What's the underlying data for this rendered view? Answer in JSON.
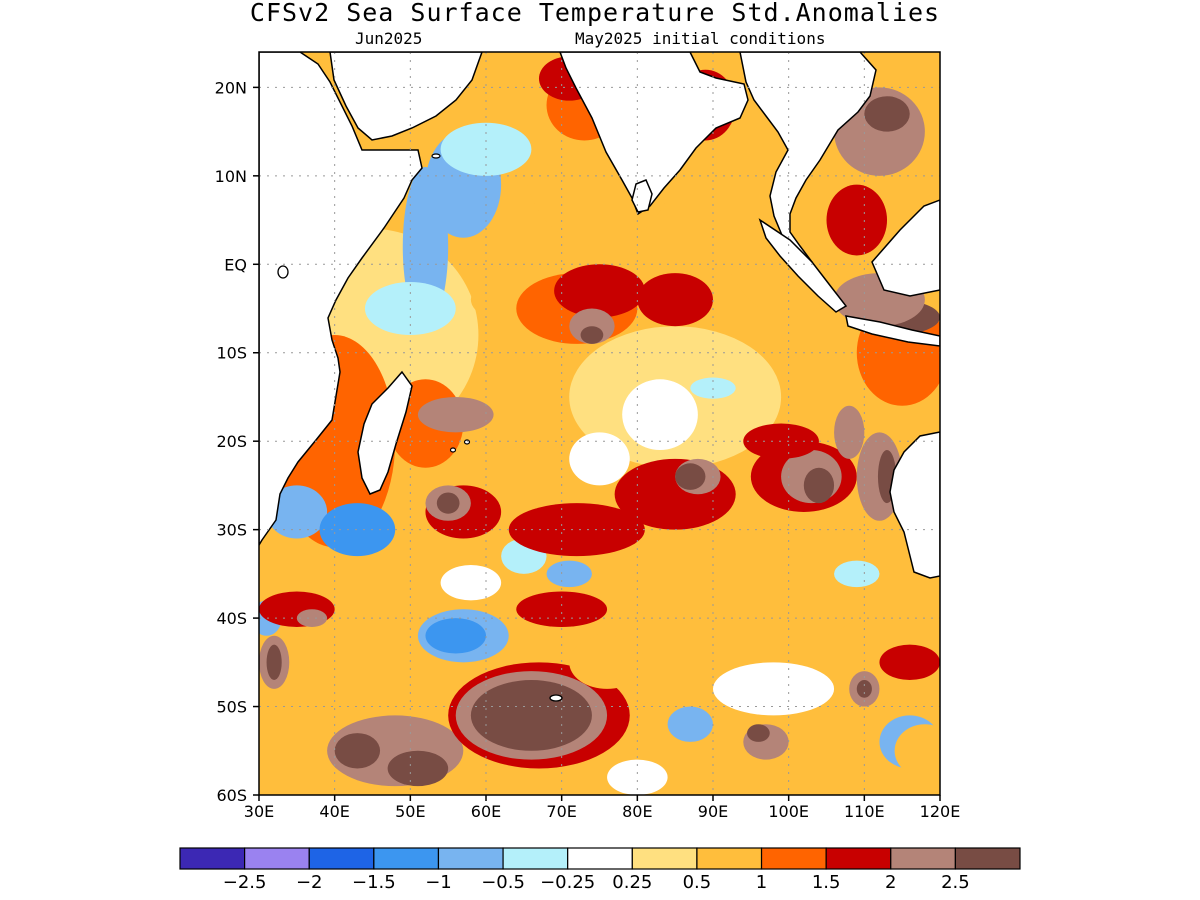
{
  "title": "CFSv2 Sea Surface Temperature Std.Anomalies",
  "subtitle_left": "Jun2025",
  "subtitle_right": "May2025 initial conditions",
  "lat_labels": [
    "20N",
    "10N",
    "EQ",
    "10S",
    "20S",
    "30S",
    "40S",
    "50S",
    "60S"
  ],
  "lat_values": [
    20,
    10,
    0,
    -10,
    -20,
    -30,
    -40,
    -50,
    -60
  ],
  "lon_labels": [
    "30E",
    "40E",
    "50E",
    "60E",
    "70E",
    "80E",
    "90E",
    "100E",
    "110E",
    "120E"
  ],
  "lon_values": [
    30,
    40,
    50,
    60,
    70,
    80,
    90,
    100,
    110,
    120
  ],
  "lat_range": [
    -60,
    24
  ],
  "lon_range": [
    30,
    120
  ],
  "colorbar": {
    "colors": [
      "#3c28b4",
      "#9a82f0",
      "#1e64e6",
      "#3c96f0",
      "#78b4f0",
      "#b4f0fa",
      "#ffffff",
      "#ffe080",
      "#ffbe3c",
      "#ff6400",
      "#c80000",
      "#b48478",
      "#784c44"
    ],
    "labels": [
      "−2.5",
      "−2",
      "−1.5",
      "−1",
      "−0.5",
      "−0.25",
      "0.25",
      "0.5",
      "1",
      "1.5",
      "2",
      "2.5"
    ]
  },
  "anomaly_patches": [
    {
      "lon": 35,
      "lat": -28,
      "level": -1,
      "r": [
        4,
        3
      ]
    },
    {
      "lon": 43,
      "lat": -30,
      "level": -1.5,
      "r": [
        5,
        3
      ]
    },
    {
      "lon": 31,
      "lat": -40,
      "level": -1,
      "r": [
        2,
        2
      ]
    },
    {
      "lon": 52,
      "lat": 2,
      "level": -1,
      "r": [
        3,
        9
      ]
    },
    {
      "lon": 57,
      "lat": 9,
      "level": -1,
      "r": [
        5,
        6
      ]
    },
    {
      "lon": 60,
      "lat": 13,
      "level": -0.5,
      "r": [
        6,
        3
      ]
    },
    {
      "lon": 50,
      "lat": -5,
      "level": -0.5,
      "r": [
        6,
        3
      ]
    },
    {
      "lon": 57,
      "lat": -42,
      "level": -1,
      "r": [
        6,
        3
      ]
    },
    {
      "lon": 56,
      "lat": -42,
      "level": -1.5,
      "r": [
        4,
        2
      ]
    },
    {
      "lon": 71,
      "lat": -35,
      "level": -1,
      "r": [
        3,
        1.5
      ]
    },
    {
      "lon": 65,
      "lat": -33,
      "level": -0.5,
      "r": [
        3,
        2
      ]
    },
    {
      "lon": 90,
      "lat": -14,
      "level": -0.5,
      "r": [
        3,
        1.2
      ]
    },
    {
      "lon": 87,
      "lat": -52,
      "level": -1,
      "r": [
        3,
        2
      ]
    },
    {
      "lon": 116,
      "lat": -54,
      "level": -1,
      "r": [
        4,
        3
      ]
    },
    {
      "lon": 119,
      "lat": -55,
      "level": -2,
      "r": [
        1.5,
        1.2
      ]
    },
    {
      "lon": 109,
      "lat": -35,
      "level": -0.5,
      "r": [
        3,
        1.5
      ]
    },
    {
      "lon": 75,
      "lat": -22,
      "level": -0.25,
      "r": [
        4,
        3
      ]
    },
    {
      "lon": 83,
      "lat": -17,
      "level": -0.25,
      "r": [
        5,
        4
      ]
    },
    {
      "lon": 58,
      "lat": -36,
      "level": -0.25,
      "r": [
        4,
        2
      ]
    },
    {
      "lon": 98,
      "lat": -48,
      "level": -0.25,
      "r": [
        8,
        3
      ]
    },
    {
      "lon": 66,
      "lat": -4,
      "level": 0.5,
      "r": [
        8,
        3
      ]
    },
    {
      "lon": 72,
      "lat": -5,
      "level": 1,
      "r": [
        8,
        4
      ]
    },
    {
      "lon": 75,
      "lat": -3,
      "level": 1.5,
      "r": [
        6,
        3
      ]
    },
    {
      "lon": 74,
      "lat": -7,
      "level": 2,
      "r": [
        3,
        2
      ]
    },
    {
      "lon": 74,
      "lat": -8,
      "level": 2.5,
      "r": [
        1.5,
        1
      ]
    },
    {
      "lon": 85,
      "lat": -4,
      "level": 1.5,
      "r": [
        5,
        3
      ]
    },
    {
      "lon": 73,
      "lat": 18,
      "level": 1,
      "r": [
        5,
        4
      ]
    },
    {
      "lon": 71,
      "lat": 21,
      "level": 1.5,
      "r": [
        4,
        2.5
      ]
    },
    {
      "lon": 89,
      "lat": 18,
      "level": 1.5,
      "r": [
        4,
        4
      ]
    },
    {
      "lon": 88,
      "lat": 19,
      "level": 2,
      "r": [
        2,
        1.5
      ]
    },
    {
      "lon": 52,
      "lat": -18,
      "level": 1,
      "r": [
        5,
        5
      ]
    },
    {
      "lon": 56,
      "lat": -17,
      "level": 2,
      "r": [
        5,
        2
      ]
    },
    {
      "lon": 57,
      "lat": -28,
      "level": 1.5,
      "r": [
        5,
        3
      ]
    },
    {
      "lon": 55,
      "lat": -27,
      "level": 2,
      "r": [
        3,
        2
      ]
    },
    {
      "lon": 55,
      "lat": -27,
      "level": 2.5,
      "r": [
        1.5,
        1.2
      ]
    },
    {
      "lon": 72,
      "lat": -30,
      "level": 1.5,
      "r": [
        9,
        3
      ]
    },
    {
      "lon": 85,
      "lat": -26,
      "level": 1.5,
      "r": [
        8,
        4
      ]
    },
    {
      "lon": 88,
      "lat": -24,
      "level": 2,
      "r": [
        3,
        2
      ]
    },
    {
      "lon": 87,
      "lat": -24,
      "level": 2.5,
      "r": [
        2,
        1.5
      ]
    },
    {
      "lon": 102,
      "lat": -24,
      "level": 1.5,
      "r": [
        7,
        4
      ]
    },
    {
      "lon": 103,
      "lat": -24,
      "level": 2,
      "r": [
        4,
        3
      ]
    },
    {
      "lon": 104,
      "lat": -25,
      "level": 2.5,
      "r": [
        2,
        2
      ]
    },
    {
      "lon": 112,
      "lat": -24,
      "level": 2,
      "r": [
        3,
        5
      ]
    },
    {
      "lon": 113,
      "lat": -24,
      "level": 2.5,
      "r": [
        1.2,
        3
      ]
    },
    {
      "lon": 108,
      "lat": -19,
      "level": 2,
      "r": [
        2,
        3
      ]
    },
    {
      "lon": 99,
      "lat": -20,
      "level": 1.5,
      "r": [
        5,
        2
      ]
    },
    {
      "lon": 35,
      "lat": -39,
      "level": 1.5,
      "r": [
        5,
        2
      ]
    },
    {
      "lon": 37,
      "lat": -40,
      "level": 2,
      "r": [
        2,
        1
      ]
    },
    {
      "lon": 32,
      "lat": -45,
      "level": 2,
      "r": [
        2,
        3
      ]
    },
    {
      "lon": 32,
      "lat": -45,
      "level": 2.5,
      "r": [
        1,
        2
      ]
    },
    {
      "lon": 48,
      "lat": -55,
      "level": 2,
      "r": [
        9,
        4
      ]
    },
    {
      "lon": 43,
      "lat": -55,
      "level": 2.5,
      "r": [
        3,
        2
      ]
    },
    {
      "lon": 51,
      "lat": -57,
      "level": 2.5,
      "r": [
        4,
        2
      ]
    },
    {
      "lon": 67,
      "lat": -51,
      "level": 1.5,
      "r": [
        12,
        6
      ]
    },
    {
      "lon": 66,
      "lat": -51,
      "level": 2,
      "r": [
        10,
        5
      ]
    },
    {
      "lon": 66,
      "lat": -51,
      "level": 2.5,
      "r": [
        8,
        4
      ]
    },
    {
      "lon": 70,
      "lat": -39,
      "level": 1.5,
      "r": [
        6,
        2
      ]
    },
    {
      "lon": 97,
      "lat": -54,
      "level": 2,
      "r": [
        3,
        2
      ]
    },
    {
      "lon": 96,
      "lat": -53,
      "level": 2.5,
      "r": [
        1.5,
        1
      ]
    },
    {
      "lon": 110,
      "lat": -48,
      "level": 2,
      "r": [
        2,
        2
      ]
    },
    {
      "lon": 110,
      "lat": -48,
      "level": 2.5,
      "r": [
        1,
        1
      ]
    },
    {
      "lon": 116,
      "lat": -45,
      "level": 1.5,
      "r": [
        4,
        2
      ]
    },
    {
      "lon": 114,
      "lat": -6,
      "level": 2.5,
      "r": [
        6,
        2
      ]
    },
    {
      "lon": 112,
      "lat": -4,
      "level": 2,
      "r": [
        6,
        3
      ]
    },
    {
      "lon": 112,
      "lat": 15,
      "level": 2,
      "r": [
        6,
        5
      ]
    },
    {
      "lon": 113,
      "lat": 17,
      "level": 2.5,
      "r": [
        3,
        2
      ]
    },
    {
      "lon": 109,
      "lat": 5,
      "level": 1.5,
      "r": [
        4,
        4
      ]
    },
    {
      "lon": 118,
      "lat": -55,
      "level": 0.5,
      "r": [
        4,
        3
      ]
    },
    {
      "lon": 80,
      "lat": -58,
      "level": -0.25,
      "r": [
        4,
        2
      ]
    },
    {
      "lon": 76,
      "lat": -45,
      "level": 0.5,
      "r": [
        5,
        3
      ]
    },
    {
      "lon": 40,
      "lat": -48,
      "level": 0.5,
      "r": [
        6,
        3
      ]
    }
  ]
}
